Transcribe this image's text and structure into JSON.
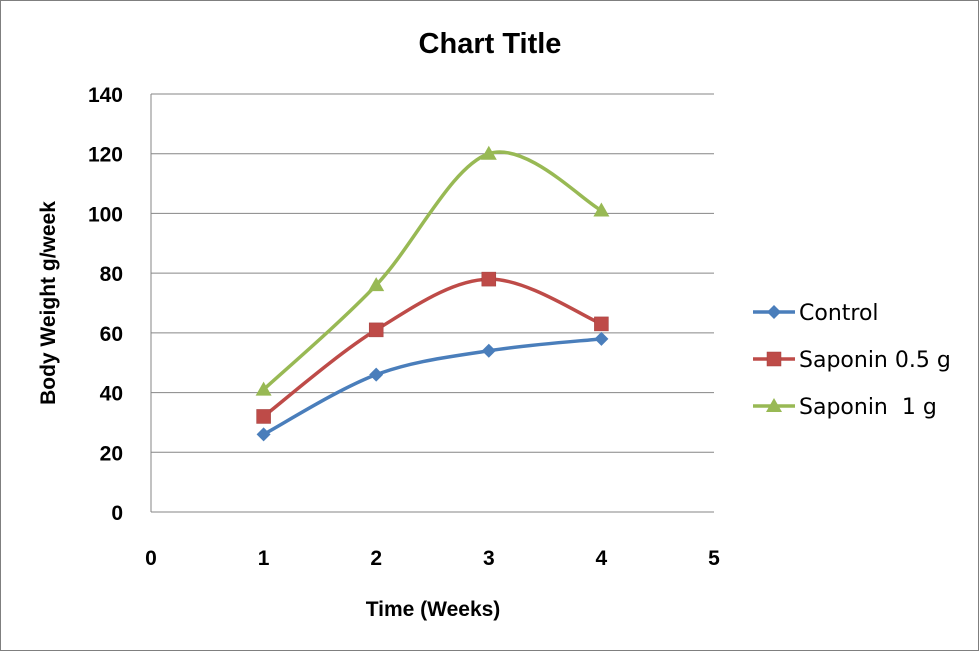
{
  "chart_data": {
    "type": "line",
    "smooth": true,
    "title": "Chart Title",
    "xlabel": "Time  (Weeks)",
    "ylabel": "Body Weight g/week",
    "xlim": [
      0,
      5
    ],
    "ylim": [
      0,
      140
    ],
    "x_ticks": [
      "0",
      "1",
      "2",
      "3",
      "4",
      "5"
    ],
    "y_ticks": [
      "0",
      "20",
      "40",
      "60",
      "80",
      "100",
      "120",
      "140"
    ],
    "grid": "horizontal",
    "legend_position": "right",
    "series": [
      {
        "name": "Control",
        "marker": "diamond",
        "color": "#4a7ebb",
        "x": [
          1,
          2,
          3,
          4
        ],
        "y": [
          26,
          46,
          54,
          58
        ]
      },
      {
        "name": "Saponin 0.5 g",
        "marker": "square",
        "color": "#be4b48",
        "x": [
          1,
          2,
          3,
          4
        ],
        "y": [
          32,
          61,
          78,
          63
        ]
      },
      {
        "name": "Saponin  1 g",
        "marker": "triangle",
        "color": "#98b954",
        "x": [
          1,
          2,
          3,
          4
        ],
        "y": [
          41,
          76,
          120,
          101
        ]
      }
    ]
  }
}
